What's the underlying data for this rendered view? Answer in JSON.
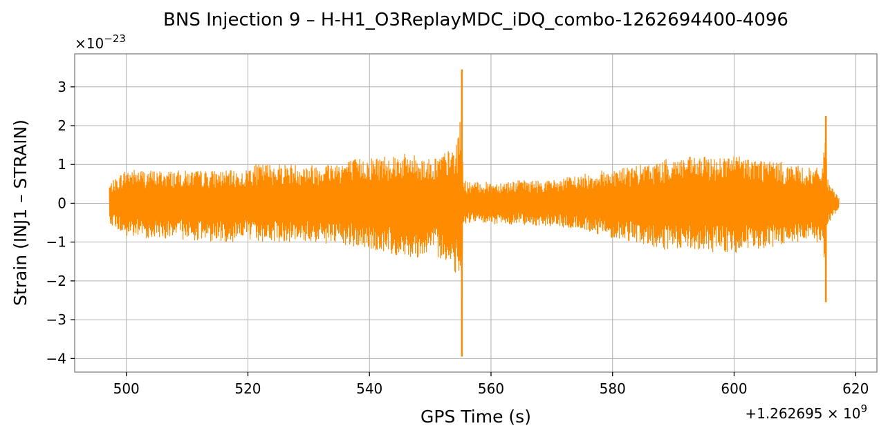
{
  "chart_data": {
    "type": "line",
    "title": "BNS Injection 9 – H-H1_O3ReplayMDC_iDQ_combo-1262694400-4096",
    "xlabel": "GPS Time (s)",
    "ylabel": "Strain (INJ1 – STRAIN)",
    "x_offset_label": "+1.262695 × 10",
    "x_offset_exp": "9",
    "y_scale_label": "×10",
    "y_scale_exp": "−23",
    "xlim": [
      491.5,
      623.5
    ],
    "ylim": [
      -4.35,
      3.85
    ],
    "x_ticks": [
      500,
      520,
      540,
      560,
      580,
      600,
      620
    ],
    "x_tick_labels": [
      "500",
      "520",
      "540",
      "560",
      "580",
      "600",
      "620"
    ],
    "y_ticks": [
      -4,
      -3,
      -2,
      -1,
      0,
      1,
      2,
      3
    ],
    "y_tick_labels": [
      "−4",
      "−3",
      "−2",
      "−1",
      "0",
      "1",
      "2",
      "3"
    ],
    "grid": true,
    "legend": "none",
    "series": [
      {
        "color": "#ff8c00",
        "x": [
          497.2,
          500,
          505,
          510,
          515,
          518,
          519.5,
          520.2,
          525,
          530,
          535,
          540,
          544,
          548,
          550,
          552,
          553.5,
          554.5,
          555.0,
          555.2,
          555.4,
          556,
          560,
          565,
          570,
          575,
          580,
          585,
          588,
          590,
          595,
          600,
          605,
          610,
          613,
          614.5,
          615.1,
          615.3,
          615.6,
          617.3
        ],
        "upper": [
          0.5,
          0.9,
          0.85,
          0.85,
          0.85,
          0.85,
          0.8,
          1.0,
          1.05,
          1.0,
          1.1,
          1.2,
          1.3,
          1.25,
          1.15,
          1.3,
          1.4,
          1.6,
          2.4,
          3.45,
          0.7,
          0.55,
          0.55,
          0.6,
          0.6,
          0.75,
          0.9,
          1.0,
          1.1,
          1.2,
          1.2,
          1.25,
          1.15,
          1.0,
          0.9,
          0.95,
          2.25,
          0.7,
          0.5,
          0.15
        ],
        "lower": [
          -0.5,
          -0.9,
          -0.9,
          -0.95,
          -1.0,
          -1.0,
          -0.8,
          -1.0,
          -1.0,
          -1.0,
          -1.1,
          -1.2,
          -1.35,
          -1.4,
          -1.3,
          -1.45,
          -1.6,
          -1.9,
          -2.7,
          -3.95,
          -0.65,
          -0.5,
          -0.55,
          -0.55,
          -0.6,
          -0.7,
          -0.9,
          -1.05,
          -1.25,
          -1.2,
          -1.25,
          -1.3,
          -1.2,
          -1.05,
          -1.0,
          -1.1,
          -2.55,
          -0.7,
          -0.5,
          -0.15
        ]
      }
    ]
  }
}
